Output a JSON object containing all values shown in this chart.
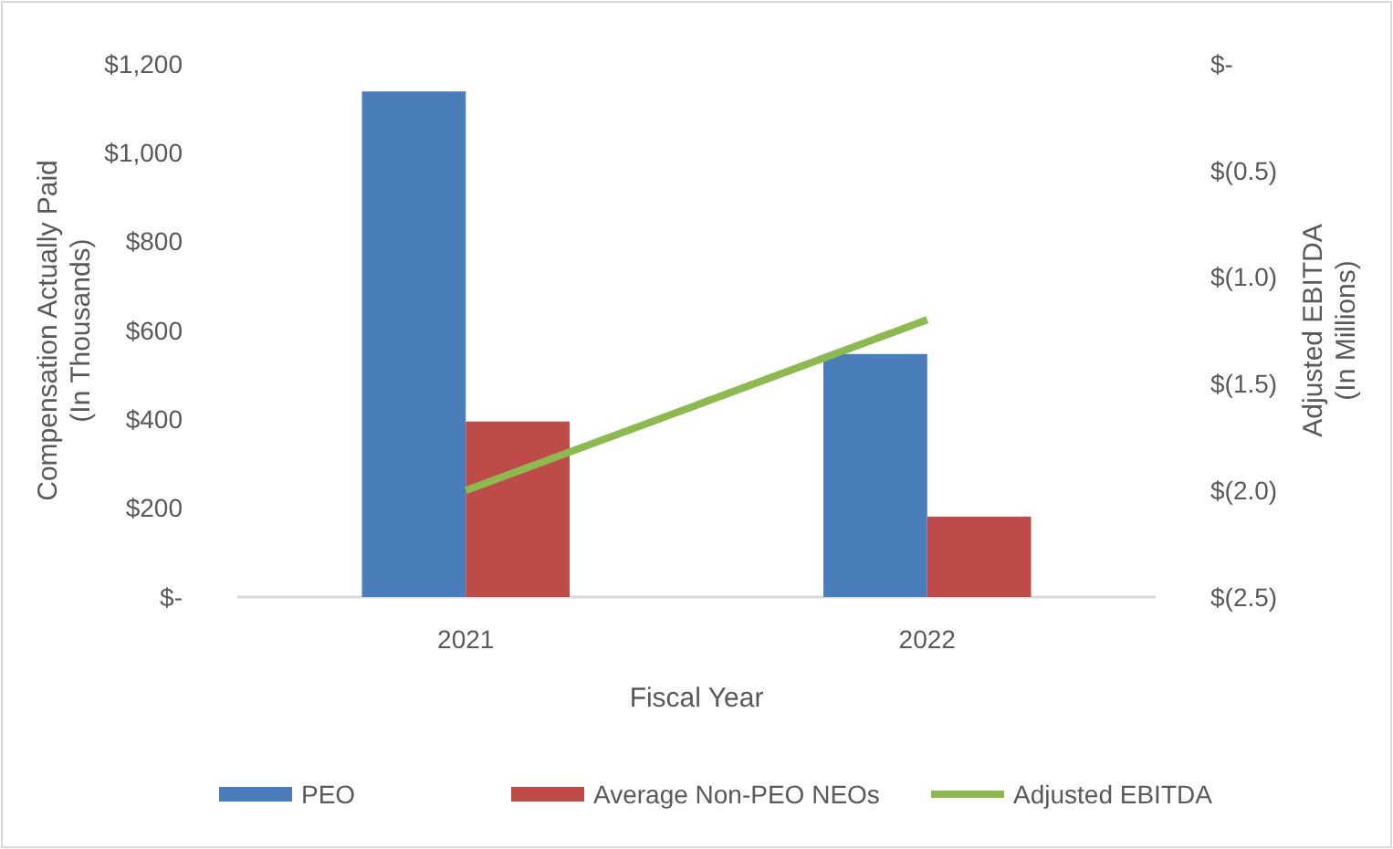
{
  "chart_data": {
    "type": "bar",
    "xlabel": "Fiscal Year",
    "ylabel": "Compensation Actually Paid\n(In Thousands)",
    "y2label": "Adjusted EBITDA\n(In Millions)",
    "categories": [
      "2021",
      "2022"
    ],
    "series": [
      {
        "name": "PEO",
        "color": "#4a7ebb",
        "values": [
          1138,
          547
        ]
      },
      {
        "name": "Average Non-PEO NEOs",
        "color": "#be4b48",
        "values": [
          395,
          181
        ]
      },
      {
        "name": "Adjusted EBITDA",
        "type": "line",
        "axis": "y2",
        "color": "#8cba4f",
        "values": [
          -2.0,
          -1.2
        ]
      }
    ],
    "ylim": [
      0,
      1200
    ],
    "yticks": [
      {
        "value": 0,
        "label": "$-"
      },
      {
        "value": 200,
        "label": "$200"
      },
      {
        "value": 400,
        "label": "$400"
      },
      {
        "value": 600,
        "label": "$600"
      },
      {
        "value": 800,
        "label": "$800"
      },
      {
        "value": 1000,
        "label": "$1,000"
      },
      {
        "value": 1200,
        "label": "$1,200"
      }
    ],
    "y2lim": [
      -2.5,
      0
    ],
    "y2ticks": [
      {
        "value": -2.5,
        "label": "$(2.5)"
      },
      {
        "value": -2,
        "label": "$(2.0)"
      },
      {
        "value": -1.5,
        "label": "$(1.5)"
      },
      {
        "value": -1,
        "label": "$(1.0)"
      },
      {
        "value": -0.5,
        "label": "$(0.5)"
      },
      {
        "value": 0,
        "label": "$-"
      }
    ],
    "legend": "bottom"
  }
}
